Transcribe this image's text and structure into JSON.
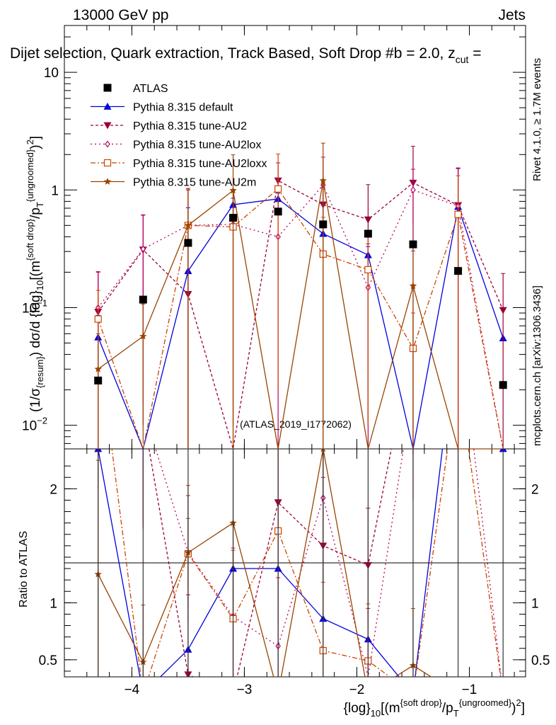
{
  "header": {
    "energy": "13000 GeV pp",
    "process": "Jets",
    "selection": "Dijet selection, Quark extraction, Track Based, Soft Drop #b = 2.0, z",
    "selection_sub": "cut",
    "selection_tail": " = ",
    "side_rivet": "Rivet 4.1.0, ≥ 1.7M events",
    "side_mcplots": "mcplots.cern.ch [arXiv:1306.3436]",
    "watermark": "(ATLAS_2019_I1772062)"
  },
  "axes": {
    "ylabel_main": "(1/σ_{resum}) dσ/d {log}_{10}[(m^{soft drop}/p_T^{ungroomed})^2]",
    "ylabel_ratio": "Ratio to ATLAS",
    "xlabel": "{log}_{10}[(m^{soft drop}/p_T^{ungroomed})^2]",
    "xlim": [
      -4.6,
      -0.5
    ],
    "ylim_main": [
      0.0063,
      25
    ],
    "ylim_ratio": [
      0.35,
      2.35
    ],
    "x_ticks": [
      -4,
      -3,
      -2,
      -1
    ],
    "x_tick_labels": [
      "−4",
      "−3",
      "−2",
      "−1"
    ],
    "main_ticks": [
      {
        "v": 0.01,
        "base": "10",
        "exp": "−2"
      },
      {
        "v": 0.1,
        "base": "10",
        "exp": "−1"
      },
      {
        "v": 1,
        "base": "1",
        "exp": ""
      },
      {
        "v": 10,
        "base": "10",
        "exp": ""
      }
    ],
    "ratio_ticks": [
      {
        "v": 0.5,
        "label": "0.5"
      },
      {
        "v": 1,
        "label": "1"
      },
      {
        "v": 2,
        "label": "2"
      }
    ]
  },
  "chart_data": {
    "type": "line",
    "title": "Dijet selection, Quark extraction, Track Based, Soft Drop #b = 2.0, z_cut = ",
    "x": [
      -4.3,
      -3.9,
      -3.5,
      -3.1,
      -2.7,
      -2.3,
      -1.9,
      -1.5,
      -1.1,
      -0.7
    ],
    "data": {
      "name": "ATLAS",
      "values": [
        0.024,
        0.117,
        0.355,
        0.58,
        0.655,
        0.51,
        0.425,
        0.345,
        0.205,
        0.022
      ],
      "color": "#000000"
    },
    "series": [
      {
        "name": "Pythia 8.315 default",
        "color": "#0000dd",
        "marker": "triangle-up",
        "dash": "",
        "values": [
          0.056,
          0.006,
          0.205,
          0.75,
          0.84,
          0.425,
          0.28,
          0.006,
          0.72,
          0.055
        ],
        "errors": [
          0.03,
          0,
          0.5,
          0.1,
          0.1,
          0.05,
          0.05,
          0,
          0.8,
          0.0
        ],
        "ratio": [
          2.35,
          0.05,
          0.59,
          1.3,
          1.3,
          0.86,
          0.68,
          0.05,
          3.5,
          2.35
        ]
      },
      {
        "name": "Pythia 8.315 tune-AU2",
        "color": "#99003a",
        "marker": "triangle-down",
        "dash": "4,3",
        "values": [
          0.092,
          0.31,
          0.13,
          0.006,
          1.2,
          0.75,
          0.56,
          1.15,
          0.74,
          0.095
        ],
        "errors": [
          0.11,
          0.3,
          0.9,
          0,
          0.5,
          0.3,
          0.55,
          1.2,
          0.8,
          0.1
        ],
        "ratio": [
          3.8,
          2.65,
          0.37,
          0.01,
          1.88,
          1.5,
          1.33,
          3.3,
          3.6,
          4.3
        ],
        "ratio_errors": [
          1.5,
          1.0,
          0.7,
          0,
          0.6,
          0.6,
          0.5,
          1.0,
          1.0,
          1.0
        ]
      },
      {
        "name": "Pythia 8.315 tune-AU2lox",
        "color": "#bb0066",
        "marker": "diamond",
        "dash": "2,4",
        "values": [
          0.1,
          0.315,
          0.5,
          0.51,
          0.4,
          1.1,
          0.148,
          1.0,
          0.73,
          0.006
        ],
        "errors": [
          0.1,
          0.3,
          0.5,
          0.5,
          0.8,
          0.8,
          0.2,
          0.5,
          0.8,
          0
        ],
        "ratio": [
          3.5,
          2.7,
          1.44,
          0.88,
          0.62,
          1.92,
          0.35,
          2.9,
          3.5,
          0.01
        ],
        "ratio_errors": [
          1.5,
          1.0,
          0.5,
          0.6,
          0.6,
          0.8,
          0.6,
          1.0,
          1.0,
          0
        ]
      },
      {
        "name": "Pythia 8.315 tune-AU2loxx",
        "color": "#cc4400",
        "marker": "square-open",
        "dash": "7,3,2,3",
        "values": [
          0.08,
          0.006,
          0.5,
          0.485,
          1.02,
          0.285,
          0.21,
          0.045,
          0.62,
          0.006
        ],
        "errors": [
          0.06,
          0,
          0.5,
          0.5,
          1.0,
          0.3,
          0.2,
          0.045,
          0.7,
          0
        ],
        "ratio": [
          3.3,
          0.01,
          1.43,
          0.86,
          1.63,
          0.58,
          0.49,
          0.13,
          3.0,
          0.01
        ],
        "ratio_errors": [
          1.2,
          0,
          0.6,
          0.6,
          0.8,
          0.6,
          0.5,
          0.2,
          1.0,
          0
        ]
      },
      {
        "name": "Pythia 8.315 tune-AU2m",
        "color": "#994400",
        "marker": "star",
        "dash": "",
        "values": [
          0.03,
          0.057,
          0.5,
          0.99,
          0.006,
          1.2,
          0.006,
          0.153,
          0.006,
          0.006
        ],
        "errors": [
          0.03,
          0.05,
          0.5,
          1.0,
          0,
          1.3,
          0,
          0.15,
          0,
          0
        ],
        "ratio": [
          1.25,
          0.48,
          1.44,
          1.7,
          0.01,
          2.35,
          0.01,
          0.45,
          0.01,
          0.01
        ],
        "ratio_errors": [
          1.0,
          0.5,
          0.3,
          0.8,
          0,
          1.5,
          0,
          0.5,
          0,
          0
        ]
      }
    ],
    "xlabel": "{log}_{10}[(m^{soft drop}/p_T^{ungroomed})^2]",
    "ylabel": "(1/σ_{resum}) dσ/d {log}_{10}[(m^{soft drop}/p_T^{ungroomed})^2]",
    "ylim": [
      0.0063,
      25
    ],
    "scale": "log",
    "legend": "top-left"
  }
}
